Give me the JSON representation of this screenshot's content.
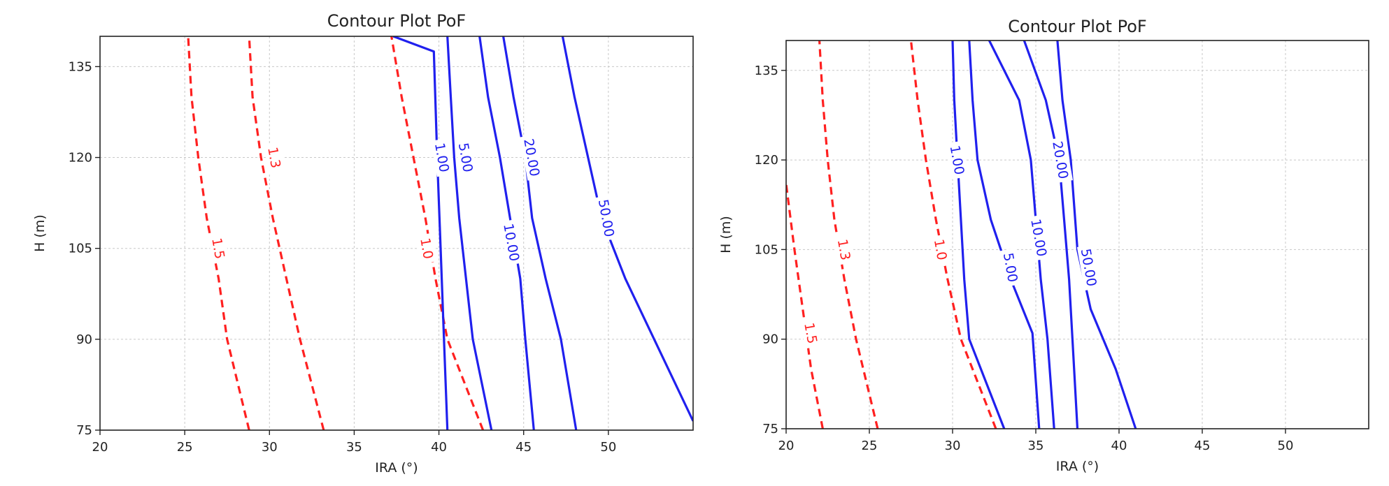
{
  "chart_data": [
    {
      "type": "line",
      "title": "Contour Plot PoF",
      "xlabel": "IRA (°)",
      "ylabel": "H (m)",
      "xlim": [
        20,
        55
      ],
      "ylim": [
        75,
        140
      ],
      "xticks": [
        "20",
        "25",
        "30",
        "35",
        "40",
        "45",
        "50"
      ],
      "yticks": [
        "75",
        "90",
        "105",
        "120",
        "135"
      ],
      "grid": true,
      "series": [
        {
          "name": "1.5",
          "color": "#ff2020",
          "style": "dashed",
          "x": [
            28.8,
            27.5,
            27,
            26.3,
            25.8,
            25.4,
            25.2
          ],
          "y": [
            75,
            90,
            100,
            110,
            120,
            130,
            140
          ]
        },
        {
          "name": "1.3",
          "color": "#ff2020",
          "style": "dashed",
          "x": [
            33.2,
            31.8,
            31,
            30.2,
            29.5,
            29,
            28.8
          ],
          "y": [
            75,
            90,
            100,
            110,
            120,
            130,
            140
          ]
        },
        {
          "name": "1.0",
          "color": "#ff2020",
          "style": "dashed",
          "x": [
            42.6,
            40.5,
            39.8,
            39.2,
            38.5,
            37.8,
            37.2
          ],
          "y": [
            75,
            90,
            100,
            110,
            120,
            130,
            140
          ]
        },
        {
          "name": "1.00",
          "color": "#2020ee",
          "style": "solid",
          "x": [
            40.5,
            40.3,
            40.1,
            39.9,
            39.7,
            37.3
          ],
          "y": [
            75,
            90,
            105,
            120,
            137.5,
            140
          ]
        },
        {
          "name": "5.00",
          "color": "#2020ee",
          "style": "solid",
          "x": [
            43.1,
            42,
            41.6,
            41.2,
            40.9,
            40.7,
            40.5
          ],
          "y": [
            75,
            90,
            100,
            110,
            120,
            130,
            140
          ]
        },
        {
          "name": "10.00",
          "color": "#2020ee",
          "style": "solid",
          "x": [
            45.6,
            45.1,
            44.8,
            44.2,
            43.6,
            42.9,
            42.4
          ],
          "y": [
            75,
            90,
            100,
            110,
            120,
            130,
            140
          ]
        },
        {
          "name": "20.00",
          "color": "#2020ee",
          "style": "solid",
          "x": [
            48.1,
            47.2,
            46.3,
            45.5,
            45.1,
            44.4,
            43.8
          ],
          "y": [
            75,
            90,
            100,
            110,
            120,
            130,
            140
          ]
        },
        {
          "name": "50.00",
          "color": "#2020ee",
          "style": "solid",
          "x": [
            55,
            52.7,
            51,
            49.6,
            48.8,
            48,
            47.3
          ],
          "y": [
            76.5,
            90,
            100,
            110,
            120,
            130,
            140
          ]
        }
      ],
      "contour_labels": [
        {
          "text": "1.5",
          "color": "#ff2020",
          "x": 27,
          "y": 105
        },
        {
          "text": "1.3",
          "color": "#ff2020",
          "x": 30.3,
          "y": 120
        },
        {
          "text": "1.0",
          "color": "#ff2020",
          "x": 39.3,
          "y": 105
        },
        {
          "text": "1.00",
          "color": "#2020ee",
          "x": 40.2,
          "y": 120
        },
        {
          "text": "5.00",
          "color": "#2020ee",
          "x": 41.6,
          "y": 120
        },
        {
          "text": "10.00",
          "color": "#2020ee",
          "x": 44.3,
          "y": 106
        },
        {
          "text": "20.00",
          "color": "#2020ee",
          "x": 45.5,
          "y": 120
        },
        {
          "text": "50.00",
          "color": "#2020ee",
          "x": 49.9,
          "y": 110
        }
      ]
    },
    {
      "type": "line",
      "title": "Contour Plot PoF",
      "xlabel": "IRA (°)",
      "ylabel": "H (m)",
      "xlim": [
        20,
        55
      ],
      "ylim": [
        75,
        140
      ],
      "xticks": [
        "20",
        "25",
        "30",
        "35",
        "40",
        "45",
        "50"
      ],
      "yticks": [
        "75",
        "90",
        "105",
        "120",
        "135"
      ],
      "grid": true,
      "series": [
        {
          "name": "1.5",
          "color": "#ff2020",
          "style": "dashed",
          "x": [
            22.2,
            21.5,
            21,
            20.5,
            20
          ],
          "y": [
            75,
            85,
            95,
            105,
            116
          ]
        },
        {
          "name": "1.3",
          "color": "#ff2020",
          "style": "dashed",
          "x": [
            25.5,
            24.2,
            23.5,
            22.9,
            22.5,
            22.2,
            22
          ],
          "y": [
            75,
            90,
            100,
            110,
            120,
            130,
            140
          ]
        },
        {
          "name": "1.0",
          "color": "#ff2020",
          "style": "dashed",
          "x": [
            32.6,
            30.5,
            29.7,
            29,
            28.4,
            27.9,
            27.5
          ],
          "y": [
            75,
            90,
            100,
            110,
            120,
            130,
            140
          ]
        },
        {
          "name": "1.00",
          "color": "#2020ee",
          "style": "solid",
          "x": [
            33.1,
            31,
            30.7,
            30.5,
            30.3,
            30.1,
            30
          ],
          "y": [
            75,
            90,
            100,
            110,
            120,
            130,
            140
          ]
        },
        {
          "name": "5.00",
          "color": "#2020ee",
          "style": "solid",
          "x": [
            35.2,
            34.8,
            33.5,
            32.3,
            31.5,
            31.2,
            31
          ],
          "y": [
            75,
            91,
            100,
            110,
            120,
            130,
            140
          ]
        },
        {
          "name": "10.00",
          "color": "#2020ee",
          "style": "solid",
          "x": [
            36.1,
            35.7,
            35.3,
            35,
            34.7,
            34,
            32.2
          ],
          "y": [
            75,
            90,
            100,
            110,
            120,
            130,
            140
          ]
        },
        {
          "name": "20.00",
          "color": "#2020ee",
          "style": "solid",
          "x": [
            37.5,
            37.2,
            37,
            36.7,
            36.4,
            35.6,
            34.3
          ],
          "y": [
            75,
            90,
            100,
            110,
            120,
            130,
            140
          ]
        },
        {
          "name": "50.00",
          "color": "#2020ee",
          "style": "solid",
          "x": [
            41,
            39.8,
            38.3,
            37.5,
            37.1,
            36.6,
            36.3
          ],
          "y": [
            75,
            85,
            95,
            105,
            120,
            130,
            140
          ]
        }
      ],
      "contour_labels": [
        {
          "text": "1.5",
          "color": "#ff2020",
          "x": 21.5,
          "y": 91
        },
        {
          "text": "1.3",
          "color": "#ff2020",
          "x": 23.5,
          "y": 105
        },
        {
          "text": "1.0",
          "color": "#ff2020",
          "x": 29.3,
          "y": 105
        },
        {
          "text": "1.00",
          "color": "#2020ee",
          "x": 30.3,
          "y": 120
        },
        {
          "text": "5.00",
          "color": "#2020ee",
          "x": 33.5,
          "y": 102
        },
        {
          "text": "10.00",
          "color": "#2020ee",
          "x": 35.2,
          "y": 107
        },
        {
          "text": "20.00",
          "color": "#2020ee",
          "x": 36.5,
          "y": 120
        },
        {
          "text": "50.00",
          "color": "#2020ee",
          "x": 38.2,
          "y": 102
        }
      ]
    }
  ]
}
